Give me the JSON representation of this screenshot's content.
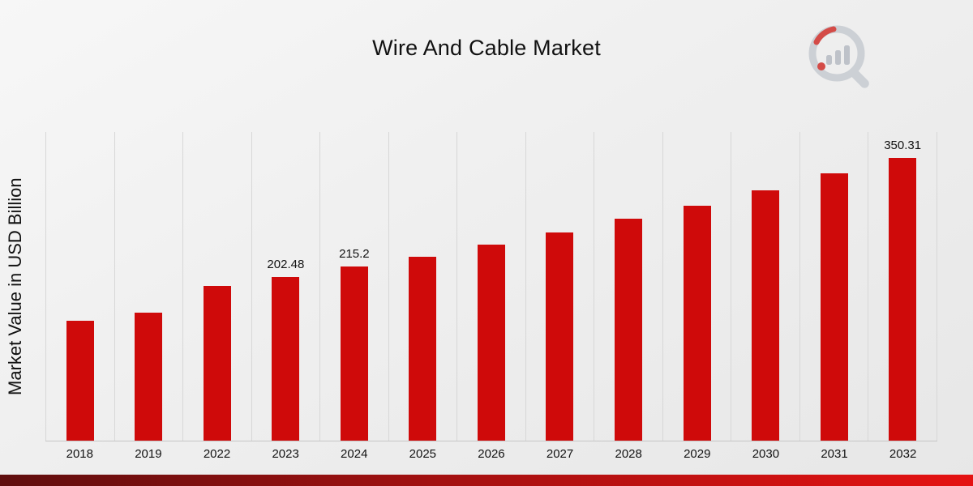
{
  "title": "Wire And Cable Market",
  "ylabel": "Market Value in USD Billion",
  "colors": {
    "bar": "#cf0a0a",
    "gridline": "#d7d7d7",
    "footer_dark": "#5f0e0e",
    "footer_mid": "#a31010",
    "footer_bright": "#e51212"
  },
  "chart_data": {
    "type": "bar",
    "title": "Wire And Cable Market",
    "xlabel": "",
    "ylabel": "Market Value in USD Billion",
    "categories": [
      "2018",
      "2019",
      "2022",
      "2023",
      "2024",
      "2025",
      "2026",
      "2027",
      "2028",
      "2029",
      "2030",
      "2031",
      "2032"
    ],
    "values": [
      148,
      158,
      191,
      202.48,
      215.2,
      228,
      243,
      258,
      275,
      291,
      310,
      331,
      350.31
    ],
    "bar_labels": [
      "",
      "",
      "",
      "202.48",
      "215.2",
      "",
      "",
      "",
      "",
      "",
      "",
      "",
      "350.31"
    ],
    "ylim": [
      0,
      383
    ],
    "grid": "vertical-only",
    "legend": "none",
    "bar_color": "#cf0a0a"
  },
  "logo": {
    "name": "market-research-future-logo"
  }
}
